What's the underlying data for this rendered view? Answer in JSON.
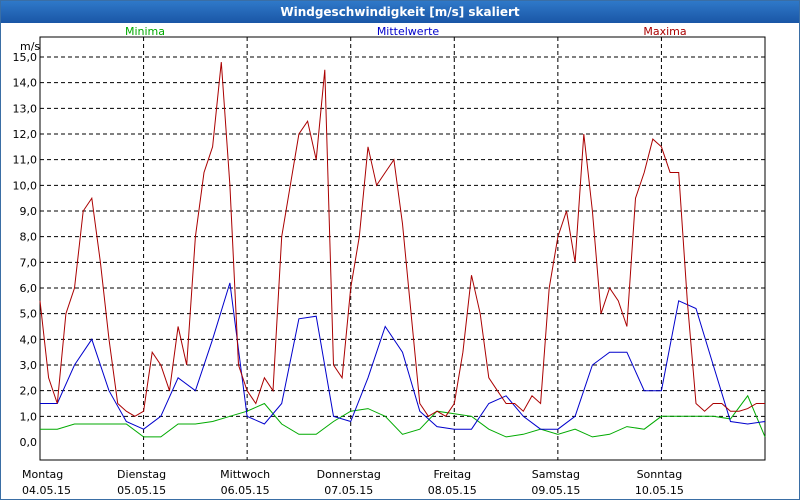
{
  "window": {
    "title": "Windgeschwindigkeit [m/s] skaliert"
  },
  "chart_data": {
    "type": "line",
    "title": "Windgeschwindigkeit [m/s] skaliert",
    "ylabel": "m/s",
    "ylim": [
      0,
      15
    ],
    "yticks": [
      "0,0",
      "1,0",
      "2,0",
      "3,0",
      "4,0",
      "5,0",
      "6,0",
      "7,0",
      "8,0",
      "9,0",
      "10,0",
      "11,0",
      "12,0",
      "13,0",
      "14,0",
      "15,0"
    ],
    "day_labels": [
      {
        "day": "Montag",
        "date": "04.05.15"
      },
      {
        "day": "Dienstag",
        "date": "05.05.15"
      },
      {
        "day": "Mittwoch",
        "date": "06.05.15"
      },
      {
        "day": "Donnerstag",
        "date": "07.05.15"
      },
      {
        "day": "Freitag",
        "date": "08.05.15"
      },
      {
        "day": "Samstag",
        "date": "09.05.15"
      },
      {
        "day": "Sonntag",
        "date": "10.05.15"
      }
    ],
    "x_unit": "hours since 04.05.15 00:00",
    "xlim": [
      0,
      168
    ],
    "grid": true,
    "series": [
      {
        "name": "Minima",
        "color": "#00aa00",
        "x": [
          0,
          4,
          8,
          12,
          16,
          20,
          24,
          28,
          32,
          36,
          40,
          44,
          48,
          52,
          56,
          60,
          64,
          68,
          72,
          76,
          80,
          84,
          88,
          92,
          96,
          100,
          104,
          108,
          112,
          116,
          120,
          124,
          128,
          132,
          136,
          140,
          144,
          148,
          152,
          156,
          160,
          164,
          168
        ],
        "y": [
          0.5,
          0.5,
          0.7,
          0.7,
          0.7,
          0.7,
          0.2,
          0.2,
          0.7,
          0.7,
          0.8,
          1.0,
          1.2,
          1.5,
          0.7,
          0.3,
          0.3,
          0.8,
          1.2,
          1.3,
          1.0,
          0.3,
          0.5,
          1.2,
          1.1,
          1.0,
          0.5,
          0.2,
          0.3,
          0.5,
          0.3,
          0.5,
          0.2,
          0.3,
          0.6,
          0.5,
          1.0,
          1.0,
          1.0,
          1.0,
          0.9,
          1.8,
          0.2
        ]
      },
      {
        "name": "Mittelwerte",
        "color": "#0000cc",
        "x": [
          0,
          4,
          8,
          12,
          16,
          20,
          24,
          28,
          32,
          36,
          40,
          44,
          48,
          52,
          56,
          60,
          64,
          68,
          72,
          76,
          80,
          84,
          88,
          92,
          96,
          100,
          104,
          108,
          112,
          116,
          120,
          124,
          128,
          132,
          136,
          140,
          144,
          148,
          152,
          156,
          160,
          164,
          168
        ],
        "y": [
          1.5,
          1.5,
          3.0,
          4.0,
          2.0,
          0.8,
          0.5,
          1.0,
          2.5,
          2.0,
          4.0,
          6.2,
          1.0,
          0.7,
          1.5,
          4.8,
          4.9,
          1.0,
          0.8,
          2.5,
          4.5,
          3.5,
          1.2,
          0.6,
          0.5,
          0.5,
          1.5,
          1.8,
          1.0,
          0.5,
          0.5,
          1.0,
          3.0,
          3.5,
          3.5,
          2.0,
          2.0,
          5.5,
          5.2,
          3.0,
          0.8,
          0.7,
          0.8
        ]
      },
      {
        "name": "Maxima",
        "color": "#aa0000",
        "x": [
          0,
          2,
          4,
          6,
          8,
          10,
          12,
          14,
          16,
          18,
          20,
          22,
          24,
          26,
          28,
          30,
          32,
          34,
          36,
          38,
          40,
          42,
          44,
          46,
          48,
          50,
          52,
          54,
          56,
          58,
          60,
          62,
          64,
          66,
          68,
          70,
          72,
          74,
          76,
          78,
          80,
          82,
          84,
          86,
          88,
          90,
          92,
          94,
          96,
          98,
          100,
          102,
          104,
          106,
          108,
          110,
          112,
          114,
          116,
          118,
          120,
          122,
          124,
          126,
          128,
          130,
          132,
          134,
          136,
          138,
          140,
          142,
          144,
          146,
          148,
          150,
          152,
          154,
          156,
          158,
          160,
          162,
          164,
          166,
          168
        ],
        "y": [
          5.5,
          2.5,
          1.5,
          5.0,
          6.0,
          9.0,
          9.5,
          7.0,
          4.0,
          1.5,
          1.2,
          1.0,
          1.2,
          3.5,
          3.0,
          2.0,
          4.5,
          3.0,
          8.0,
          10.5,
          11.5,
          14.8,
          10.0,
          3.0,
          2.0,
          1.5,
          2.5,
          2.0,
          8.0,
          10.0,
          12.0,
          12.5,
          11.0,
          14.5,
          3.0,
          2.5,
          6.0,
          8.0,
          11.5,
          10.0,
          10.5,
          11.0,
          8.5,
          5.0,
          1.5,
          1.0,
          1.2,
          1.0,
          1.5,
          3.5,
          6.5,
          5.0,
          2.5,
          2.0,
          1.5,
          1.5,
          1.2,
          1.8,
          1.5,
          6.0,
          8.0,
          9.0,
          7.0,
          12.0,
          9.0,
          5.0,
          6.0,
          5.5,
          4.5,
          9.5,
          10.5,
          11.8,
          11.5,
          10.5,
          10.5,
          5.5,
          1.5,
          1.2,
          1.5,
          1.5,
          1.2,
          1.2,
          1.3,
          1.5,
          1.5
        ]
      }
    ],
    "legend": [
      "Minima",
      "Mittelwerte",
      "Maxima"
    ]
  }
}
